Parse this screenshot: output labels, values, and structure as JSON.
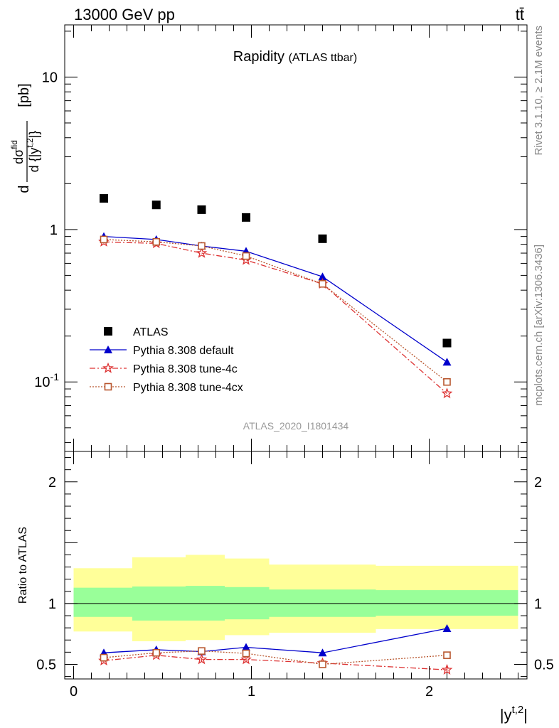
{
  "header": {
    "left": "13000 GeV pp",
    "right": "tt̄"
  },
  "side_labels": {
    "top": "Rivet 3.1.10, ≥ 2.1M events",
    "bottom": "mcplots.cern.ch [arXiv:1306.3436]"
  },
  "chart_data": {
    "type": "scatter",
    "title": "Rapidity",
    "subtitle": "(ATLAS ttbar)",
    "analysis_tag": "ATLAS_2020_I1801434",
    "xlabel": "|y",
    "xlabel_sup": "t,2",
    "xlabel_end": "|",
    "ylabel": "dσ/d{|y^t,2|} [pb]",
    "ylabel_parts": {
      "d": "d",
      "num": "dσ",
      "num_sup": "fid",
      "den_pre": "d {|y",
      "den_sup": "t,2",
      "den_post": "|}",
      "unit": "[pb]"
    },
    "ratio_ylabel": "Ratio to ATLAS",
    "xlim": [
      -0.05,
      2.55
    ],
    "ylim": [
      0.035,
      22
    ],
    "ylog": true,
    "ratio_ylim": [
      0.38,
      2.25
    ],
    "x_ticks": [
      "0",
      "1",
      "2"
    ],
    "y_ticks": [
      "10",
      "1",
      "10^-1"
    ],
    "ratio_ticks": [
      "2",
      "1",
      "0.5"
    ],
    "bins": [
      0.0,
      0.33,
      0.63,
      0.85,
      1.1,
      1.7,
      2.5
    ],
    "x": [
      0.17,
      0.465,
      0.72,
      0.97,
      1.4,
      2.1
    ],
    "legend_position": "bottom-left",
    "series": [
      {
        "name": "ATLAS",
        "marker": "square",
        "color": "#000000",
        "values": [
          1.6,
          1.45,
          1.35,
          1.2,
          0.87,
          0.18
        ],
        "ratio": [
          1,
          1,
          1,
          1,
          1,
          1
        ],
        "band_inner": [
          [
            0.89,
            1.13
          ],
          [
            0.86,
            1.14
          ],
          [
            0.86,
            1.145
          ],
          [
            0.87,
            1.135
          ],
          [
            0.89,
            1.115
          ],
          [
            0.9,
            1.11
          ]
        ],
        "band_outer": [
          [
            0.77,
            1.29
          ],
          [
            0.69,
            1.38
          ],
          [
            0.7,
            1.4
          ],
          [
            0.74,
            1.37
          ],
          [
            0.76,
            1.32
          ],
          [
            0.79,
            1.31
          ]
        ]
      },
      {
        "name": "Pythia 8.308 default",
        "marker": "triangle",
        "color": "#0000cc",
        "dash": "",
        "values": [
          0.9,
          0.86,
          0.78,
          0.72,
          0.49,
          0.135
        ],
        "ratio": [
          0.595,
          0.62,
          0.605,
          0.64,
          0.595,
          0.795
        ],
        "ratio_err": [
          0.015,
          0.015,
          0.015,
          0.02,
          0.015,
          0.025
        ]
      },
      {
        "name": "Pythia 8.308 tune-4c",
        "marker": "star",
        "color": "#dd3333",
        "dash": "8,3,2,3",
        "values": [
          0.83,
          0.81,
          0.7,
          0.63,
          0.44,
          0.084
        ],
        "ratio": [
          0.53,
          0.575,
          0.54,
          0.54,
          0.51,
          0.455
        ],
        "ratio_err": [
          0.015,
          0.015,
          0.015,
          0.015,
          0.015,
          0.025
        ]
      },
      {
        "name": "Pythia 8.308 tune-4cx",
        "marker": "open-square",
        "color": "#b8562e",
        "dash": "2,2",
        "values": [
          0.86,
          0.83,
          0.78,
          0.67,
          0.44,
          0.1
        ],
        "ratio": [
          0.555,
          0.595,
          0.61,
          0.59,
          0.5,
          0.575
        ],
        "ratio_err": [
          0.015,
          0.015,
          0.015,
          0.015,
          0.015,
          0.02
        ]
      }
    ],
    "colors": {
      "band_outer": "#ffff99",
      "band_inner": "#99ff99"
    }
  }
}
